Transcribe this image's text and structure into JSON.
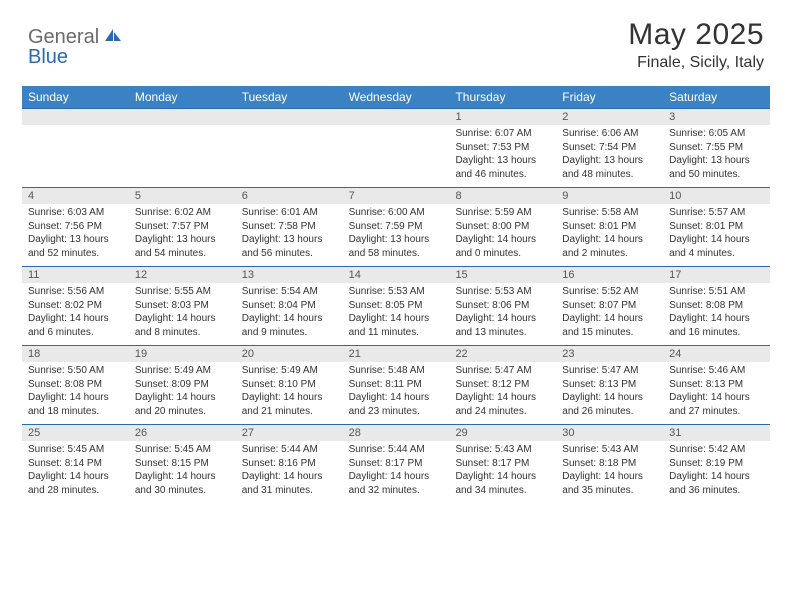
{
  "brand": {
    "part1": "General",
    "part2": "Blue",
    "color_gray": "#6b6b6b",
    "color_blue": "#2a6bb0",
    "icon_fill": "#2a6bb0"
  },
  "header": {
    "title": "May 2025",
    "location": "Finale, Sicily, Italy"
  },
  "theme": {
    "header_bar_bg": "#3b82c4",
    "header_bar_text": "#ffffff",
    "daynum_bg": "#e9e9e9",
    "week_border": "#2a6bb0",
    "body_text": "#333333",
    "page_bg": "#ffffff",
    "title_fontsize": 30,
    "location_fontsize": 16,
    "dayheader_fontsize": 12,
    "daynum_fontsize": 11,
    "body_fontsize": 10
  },
  "day_names": [
    "Sunday",
    "Monday",
    "Tuesday",
    "Wednesday",
    "Thursday",
    "Friday",
    "Saturday"
  ],
  "weeks": [
    {
      "nums": [
        "",
        "",
        "",
        "",
        "1",
        "2",
        "3"
      ],
      "cells": [
        "",
        "",
        "",
        "",
        "Sunrise: 6:07 AM\nSunset: 7:53 PM\nDaylight: 13 hours and 46 minutes.",
        "Sunrise: 6:06 AM\nSunset: 7:54 PM\nDaylight: 13 hours and 48 minutes.",
        "Sunrise: 6:05 AM\nSunset: 7:55 PM\nDaylight: 13 hours and 50 minutes."
      ]
    },
    {
      "nums": [
        "4",
        "5",
        "6",
        "7",
        "8",
        "9",
        "10"
      ],
      "cells": [
        "Sunrise: 6:03 AM\nSunset: 7:56 PM\nDaylight: 13 hours and 52 minutes.",
        "Sunrise: 6:02 AM\nSunset: 7:57 PM\nDaylight: 13 hours and 54 minutes.",
        "Sunrise: 6:01 AM\nSunset: 7:58 PM\nDaylight: 13 hours and 56 minutes.",
        "Sunrise: 6:00 AM\nSunset: 7:59 PM\nDaylight: 13 hours and 58 minutes.",
        "Sunrise: 5:59 AM\nSunset: 8:00 PM\nDaylight: 14 hours and 0 minutes.",
        "Sunrise: 5:58 AM\nSunset: 8:01 PM\nDaylight: 14 hours and 2 minutes.",
        "Sunrise: 5:57 AM\nSunset: 8:01 PM\nDaylight: 14 hours and 4 minutes."
      ]
    },
    {
      "nums": [
        "11",
        "12",
        "13",
        "14",
        "15",
        "16",
        "17"
      ],
      "cells": [
        "Sunrise: 5:56 AM\nSunset: 8:02 PM\nDaylight: 14 hours and 6 minutes.",
        "Sunrise: 5:55 AM\nSunset: 8:03 PM\nDaylight: 14 hours and 8 minutes.",
        "Sunrise: 5:54 AM\nSunset: 8:04 PM\nDaylight: 14 hours and 9 minutes.",
        "Sunrise: 5:53 AM\nSunset: 8:05 PM\nDaylight: 14 hours and 11 minutes.",
        "Sunrise: 5:53 AM\nSunset: 8:06 PM\nDaylight: 14 hours and 13 minutes.",
        "Sunrise: 5:52 AM\nSunset: 8:07 PM\nDaylight: 14 hours and 15 minutes.",
        "Sunrise: 5:51 AM\nSunset: 8:08 PM\nDaylight: 14 hours and 16 minutes."
      ]
    },
    {
      "nums": [
        "18",
        "19",
        "20",
        "21",
        "22",
        "23",
        "24"
      ],
      "cells": [
        "Sunrise: 5:50 AM\nSunset: 8:08 PM\nDaylight: 14 hours and 18 minutes.",
        "Sunrise: 5:49 AM\nSunset: 8:09 PM\nDaylight: 14 hours and 20 minutes.",
        "Sunrise: 5:49 AM\nSunset: 8:10 PM\nDaylight: 14 hours and 21 minutes.",
        "Sunrise: 5:48 AM\nSunset: 8:11 PM\nDaylight: 14 hours and 23 minutes.",
        "Sunrise: 5:47 AM\nSunset: 8:12 PM\nDaylight: 14 hours and 24 minutes.",
        "Sunrise: 5:47 AM\nSunset: 8:13 PM\nDaylight: 14 hours and 26 minutes.",
        "Sunrise: 5:46 AM\nSunset: 8:13 PM\nDaylight: 14 hours and 27 minutes."
      ]
    },
    {
      "nums": [
        "25",
        "26",
        "27",
        "28",
        "29",
        "30",
        "31"
      ],
      "cells": [
        "Sunrise: 5:45 AM\nSunset: 8:14 PM\nDaylight: 14 hours and 28 minutes.",
        "Sunrise: 5:45 AM\nSunset: 8:15 PM\nDaylight: 14 hours and 30 minutes.",
        "Sunrise: 5:44 AM\nSunset: 8:16 PM\nDaylight: 14 hours and 31 minutes.",
        "Sunrise: 5:44 AM\nSunset: 8:17 PM\nDaylight: 14 hours and 32 minutes.",
        "Sunrise: 5:43 AM\nSunset: 8:17 PM\nDaylight: 14 hours and 34 minutes.",
        "Sunrise: 5:43 AM\nSunset: 8:18 PM\nDaylight: 14 hours and 35 minutes.",
        "Sunrise: 5:42 AM\nSunset: 8:19 PM\nDaylight: 14 hours and 36 minutes."
      ]
    }
  ]
}
